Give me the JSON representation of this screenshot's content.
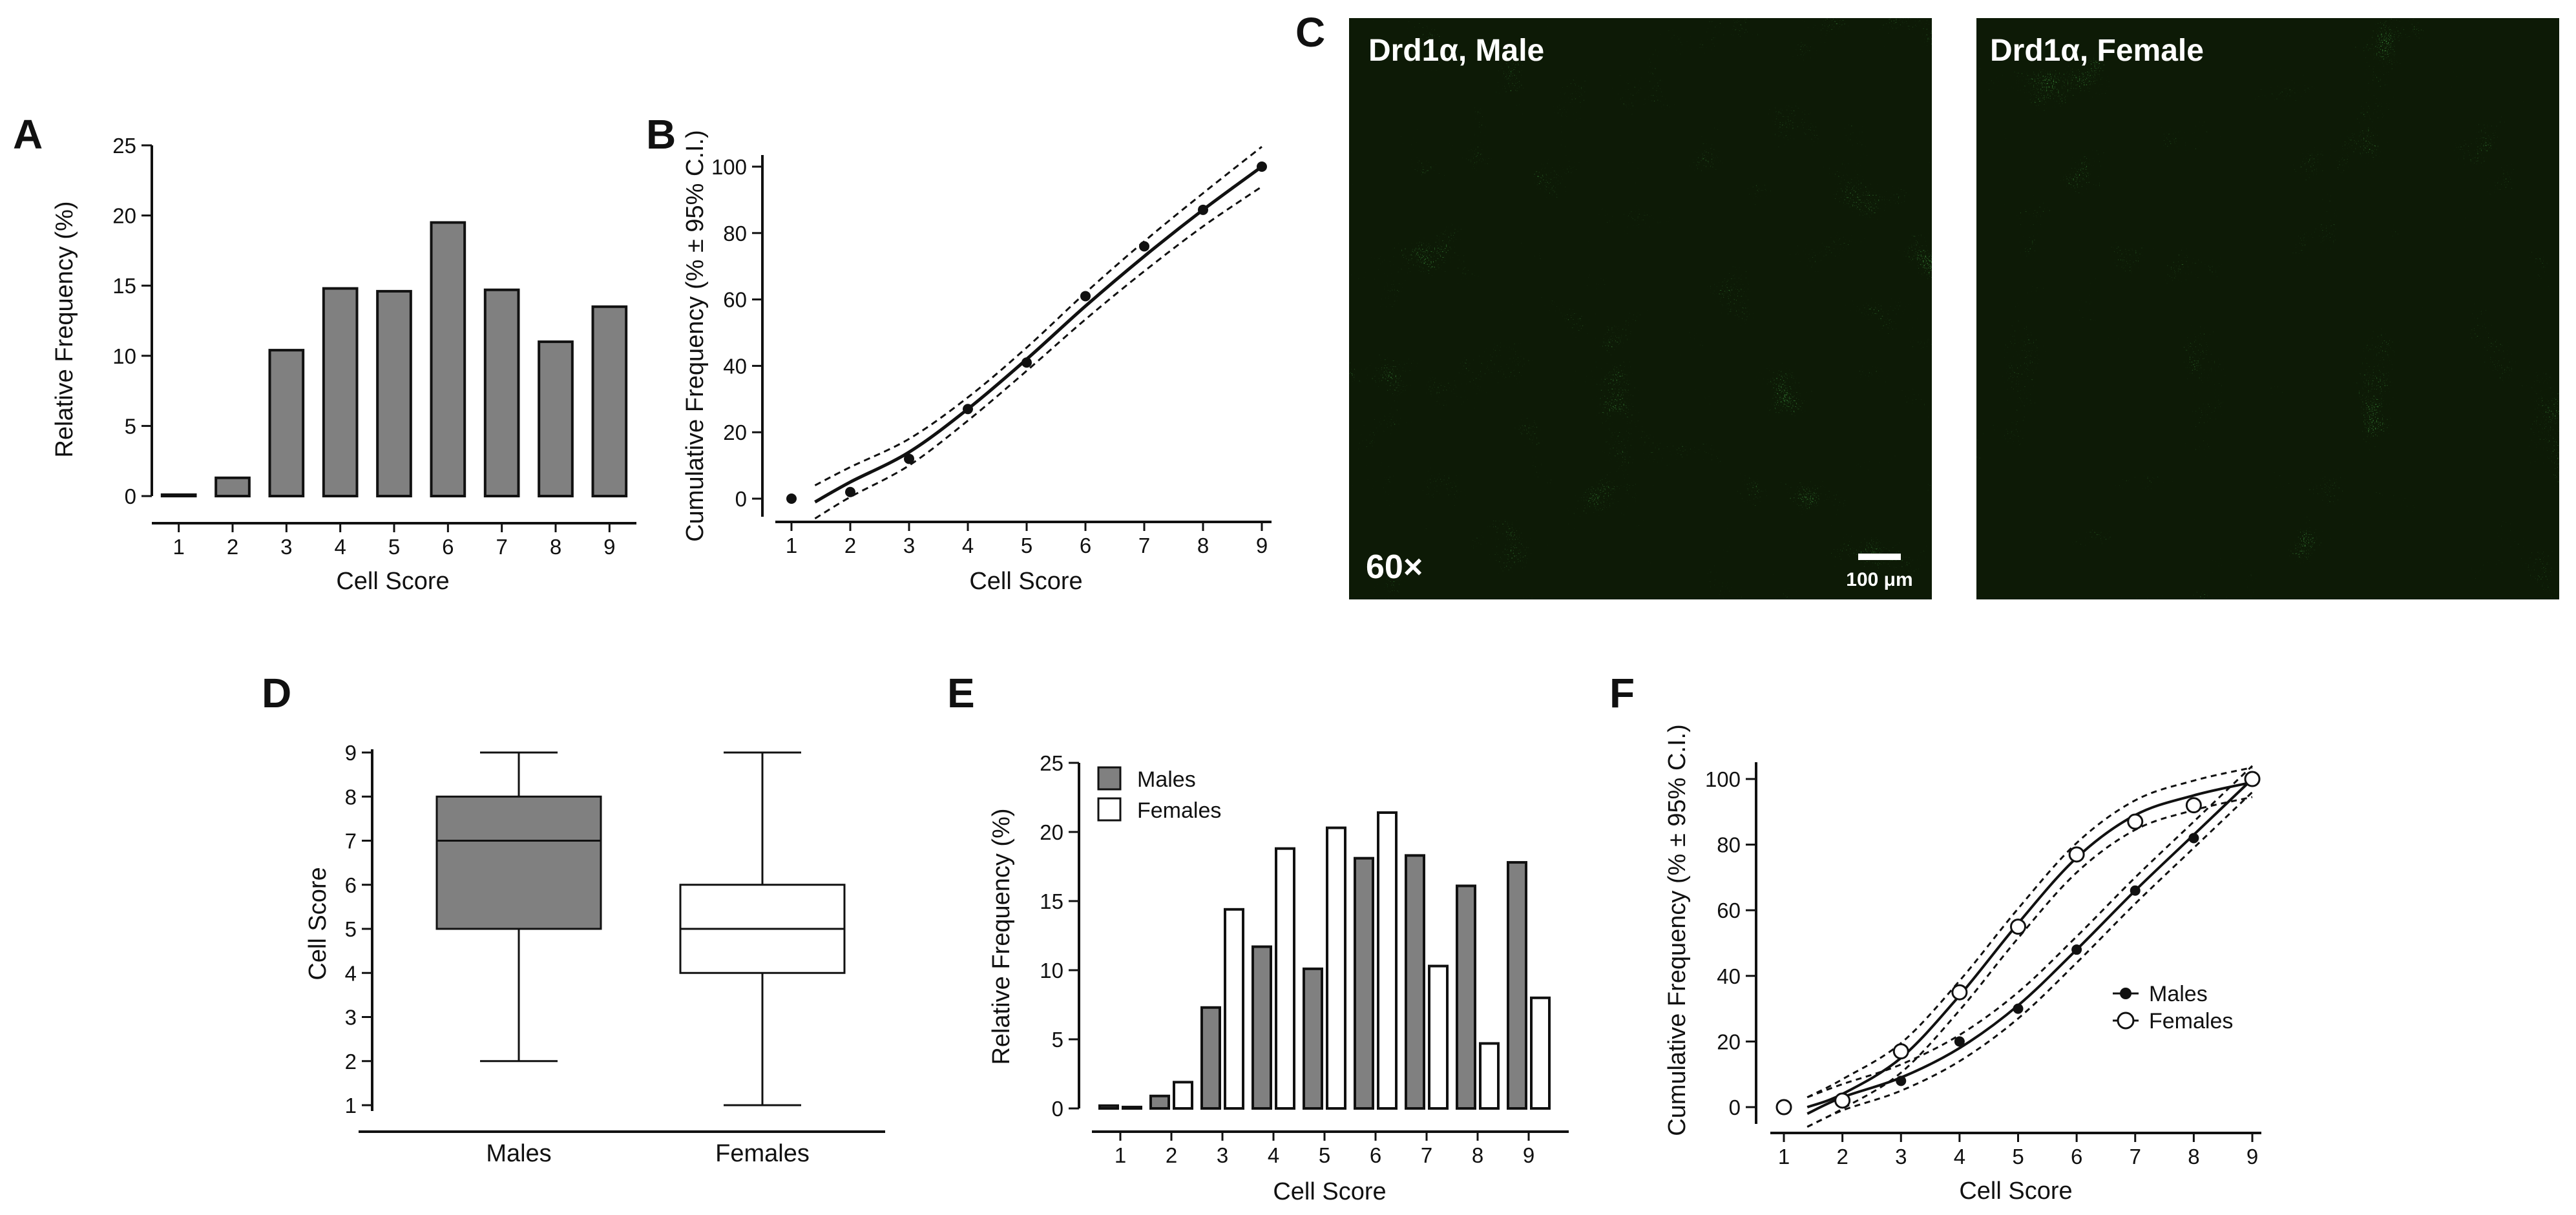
{
  "panels": {
    "A": "A",
    "B": "B",
    "C": "C",
    "D": "D",
    "E": "E",
    "F": "F"
  },
  "colors": {
    "male_bar": "#808080",
    "female_bar": "#ffffff",
    "stroke": "#111111",
    "micro_bg": "#0d1a06",
    "micro_green": "#2ee02a"
  },
  "micrographs": {
    "left_label": "Drd1α, Male",
    "right_label": "Drd1α, Female",
    "magnification": "60×",
    "scale_bar": "100 μm"
  },
  "chart_data": [
    {
      "id": "A",
      "type": "bar",
      "categories": [
        "1",
        "2",
        "3",
        "4",
        "5",
        "6",
        "7",
        "8",
        "9"
      ],
      "values": [
        0.1,
        1.3,
        10.4,
        14.8,
        14.6,
        19.5,
        14.7,
        11.0,
        13.5
      ],
      "xlabel": "Cell Score",
      "ylabel": "Relative Frequency (%)",
      "ylim": [
        0,
        25
      ],
      "yticks": [
        0,
        5,
        10,
        15,
        20,
        25
      ]
    },
    {
      "id": "B",
      "type": "line",
      "x": [
        1,
        2,
        3,
        4,
        5,
        6,
        7,
        8,
        9
      ],
      "points": [
        0,
        2,
        12,
        27,
        41,
        61,
        76,
        87,
        100
      ],
      "fit": [
        0,
        5,
        14,
        27,
        42,
        58,
        73,
        87,
        100
      ],
      "ci_width": [
        5,
        4.5,
        4,
        3.5,
        3.5,
        4,
        4.5,
        5,
        6
      ],
      "xlabel": "Cell Score",
      "ylabel": "Cumulative Frequency (% ± 95% C.I.)",
      "xlim": [
        1,
        9
      ],
      "ylim": [
        0,
        100
      ],
      "yticks": [
        0,
        20,
        40,
        60,
        80,
        100
      ]
    },
    {
      "id": "D",
      "type": "box",
      "categories": [
        "Males",
        "Females"
      ],
      "boxes": [
        {
          "min": 2,
          "q1": 5,
          "median": 7,
          "q3": 8,
          "max": 9
        },
        {
          "min": 1,
          "q1": 4,
          "median": 5,
          "q3": 6,
          "max": 9
        }
      ],
      "ylabel": "Cell  Score",
      "ylim": [
        1,
        9
      ],
      "yticks": [
        1,
        2,
        3,
        4,
        5,
        6,
        7,
        8,
        9
      ]
    },
    {
      "id": "E",
      "type": "bar",
      "categories": [
        "1",
        "2",
        "3",
        "4",
        "5",
        "6",
        "7",
        "8",
        "9"
      ],
      "series": [
        {
          "name": "Males",
          "values": [
            0.2,
            0.9,
            7.3,
            11.7,
            10.1,
            18.1,
            18.3,
            16.1,
            17.8
          ]
        },
        {
          "name": "Females",
          "values": [
            0.1,
            1.9,
            14.4,
            18.8,
            20.3,
            21.4,
            10.3,
            4.7,
            8.0
          ]
        }
      ],
      "xlabel": "Cell Score",
      "ylabel": "Relative Frequency (%)",
      "ylim": [
        0,
        25
      ],
      "yticks": [
        0,
        5,
        10,
        15,
        20,
        25
      ],
      "legend": "top-left"
    },
    {
      "id": "F",
      "type": "line",
      "x": [
        1,
        2,
        3,
        4,
        5,
        6,
        7,
        8,
        9
      ],
      "series": [
        {
          "name": "Males",
          "points": [
            0,
            2,
            8,
            20,
            30,
            48,
            66,
            82,
            100
          ],
          "fit": [
            0,
            3,
            9,
            18,
            31,
            48,
            66,
            83,
            100
          ]
        },
        {
          "name": "Females",
          "points": [
            0,
            2,
            17,
            35,
            55,
            77,
            87,
            92,
            100
          ],
          "fit": [
            0,
            4,
            15,
            34,
            56,
            76,
            89,
            95,
            99
          ]
        }
      ],
      "xlabel": "Cell Score",
      "ylabel": "Cumulative Frequency (% ± 95% C.I.)",
      "xlim": [
        1,
        9
      ],
      "ylim": [
        0,
        100
      ],
      "yticks": [
        0,
        20,
        40,
        60,
        80,
        100
      ],
      "legend": "right"
    }
  ]
}
